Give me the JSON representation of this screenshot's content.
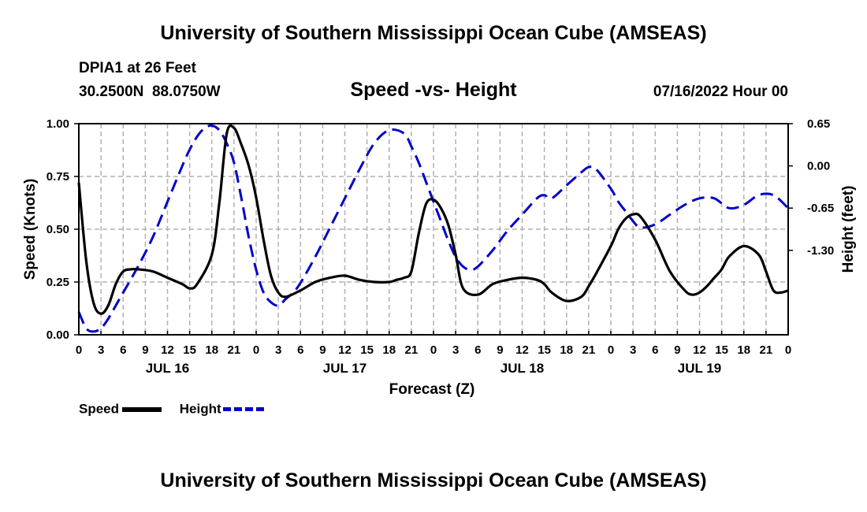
{
  "header": {
    "title": "University of Southern Mississippi Ocean Cube (AMSEAS)",
    "station": "DPIA1 at 26 Feet",
    "coords": "30.2500N  88.0750W",
    "subtitle": "Speed -vs- Height",
    "datestamp": "07/16/2022 Hour 00"
  },
  "footer": {
    "title": "University of Southern Mississippi Ocean Cube (AMSEAS)"
  },
  "legend": {
    "speed_label": "Speed",
    "height_label": "Height"
  },
  "colors": {
    "speed": "#000000",
    "height": "#0000cc",
    "grid": "#b0b0b0"
  },
  "chart_data": {
    "type": "line",
    "title": "Speed -vs- Height",
    "xlabel": "Forecast (Z)",
    "ylabel": "Speed (Knots)",
    "y2label": "Height (feet)",
    "x_unit": "hours since 07/16/2022 00Z",
    "xlim": [
      0,
      96
    ],
    "ylim": [
      0,
      1.0
    ],
    "y2lim": [
      -2.6,
      0.65
    ],
    "x_ticks": [
      0,
      3,
      6,
      9,
      12,
      15,
      18,
      21,
      24,
      27,
      30,
      33,
      36,
      39,
      42,
      45,
      48,
      51,
      54,
      57,
      60,
      63,
      66,
      69,
      72,
      75,
      78,
      81,
      84,
      87,
      90,
      93,
      96
    ],
    "x_tick_labels": [
      "0",
      "3",
      "6",
      "9",
      "12",
      "15",
      "18",
      "21",
      "0",
      "3",
      "6",
      "9",
      "12",
      "15",
      "18",
      "21",
      "0",
      "3",
      "6",
      "9",
      "12",
      "15",
      "18",
      "21",
      "0",
      "3",
      "6",
      "9",
      "12",
      "15",
      "18",
      "21",
      "0"
    ],
    "day_labels": [
      {
        "label": "JUL 16",
        "x": 12
      },
      {
        "label": "JUL 17",
        "x": 36
      },
      {
        "label": "JUL 18",
        "x": 60
      },
      {
        "label": "JUL 19",
        "x": 84
      }
    ],
    "y_ticks": [
      0.0,
      0.25,
      0.5,
      0.75,
      1.0
    ],
    "y_tick_labels": [
      "0.00",
      "0.25",
      "0.50",
      "0.75",
      "1.00"
    ],
    "y2_ticks": [
      0.65,
      0.0,
      -0.65,
      -1.3
    ],
    "y2_tick_labels": [
      "0.65",
      "0.00",
      "-0.65",
      "-1.30"
    ],
    "grid": true,
    "legend_position": "bottom-left",
    "series": [
      {
        "name": "Speed",
        "axis": "left",
        "x": [
          0,
          1,
          2,
          3,
          4,
          5,
          6,
          7,
          8,
          10,
          12,
          14,
          15,
          16,
          18,
          19,
          20,
          21,
          22,
          23,
          24,
          25,
          26,
          27,
          28,
          30,
          32,
          34,
          36,
          38,
          40,
          42,
          43,
          44,
          45,
          46,
          47,
          48,
          49,
          50,
          51,
          52,
          54,
          56,
          58,
          60,
          62,
          63,
          64,
          66,
          68,
          69,
          70,
          72,
          73,
          74,
          75,
          76,
          78,
          80,
          82,
          83,
          84,
          85,
          86,
          87,
          88,
          90,
          92,
          93,
          94,
          95,
          96
        ],
        "y": [
          0.72,
          0.35,
          0.15,
          0.1,
          0.14,
          0.24,
          0.3,
          0.31,
          0.31,
          0.3,
          0.27,
          0.24,
          0.22,
          0.24,
          0.38,
          0.62,
          0.95,
          0.98,
          0.9,
          0.8,
          0.65,
          0.45,
          0.28,
          0.2,
          0.18,
          0.21,
          0.25,
          0.27,
          0.28,
          0.26,
          0.25,
          0.25,
          0.26,
          0.27,
          0.3,
          0.48,
          0.62,
          0.64,
          0.6,
          0.52,
          0.38,
          0.22,
          0.19,
          0.24,
          0.26,
          0.27,
          0.26,
          0.24,
          0.2,
          0.16,
          0.18,
          0.23,
          0.29,
          0.42,
          0.5,
          0.55,
          0.57,
          0.56,
          0.45,
          0.3,
          0.21,
          0.19,
          0.2,
          0.23,
          0.27,
          0.31,
          0.37,
          0.42,
          0.38,
          0.3,
          0.21,
          0.2,
          0.21
        ]
      },
      {
        "name": "Height",
        "axis": "right",
        "x": [
          0,
          1,
          2,
          3,
          4,
          5,
          6,
          8,
          10,
          12,
          14,
          15,
          16,
          17,
          18,
          19,
          20,
          21,
          22,
          23,
          24,
          25,
          26,
          27,
          28,
          29,
          30,
          32,
          34,
          36,
          38,
          40,
          42,
          44,
          45,
          46,
          47,
          48,
          49,
          50,
          51,
          52,
          53,
          54,
          56,
          58,
          60,
          62,
          63,
          64,
          66,
          68,
          69,
          70,
          72,
          73,
          74,
          75,
          76,
          78,
          80,
          82,
          84,
          86,
          88,
          90,
          92,
          94,
          96
        ],
        "y": [
          -2.25,
          -2.5,
          -2.55,
          -2.5,
          -2.35,
          -2.15,
          -1.95,
          -1.55,
          -1.1,
          -0.55,
          0.0,
          0.25,
          0.45,
          0.58,
          0.62,
          0.55,
          0.35,
          0.05,
          -0.5,
          -1.1,
          -1.6,
          -1.95,
          -2.1,
          -2.15,
          -2.05,
          -1.95,
          -1.8,
          -1.4,
          -0.95,
          -0.5,
          -0.05,
          0.35,
          0.55,
          0.5,
          0.3,
          0.05,
          -0.25,
          -0.55,
          -0.85,
          -1.15,
          -1.4,
          -1.55,
          -1.6,
          -1.55,
          -1.3,
          -1.0,
          -0.75,
          -0.5,
          -0.45,
          -0.5,
          -0.3,
          -0.1,
          -0.02,
          -0.05,
          -0.35,
          -0.55,
          -0.7,
          -0.85,
          -0.95,
          -0.9,
          -0.75,
          -0.6,
          -0.5,
          -0.5,
          -0.65,
          -0.6,
          -0.45,
          -0.45,
          -0.65
        ]
      }
    ]
  }
}
